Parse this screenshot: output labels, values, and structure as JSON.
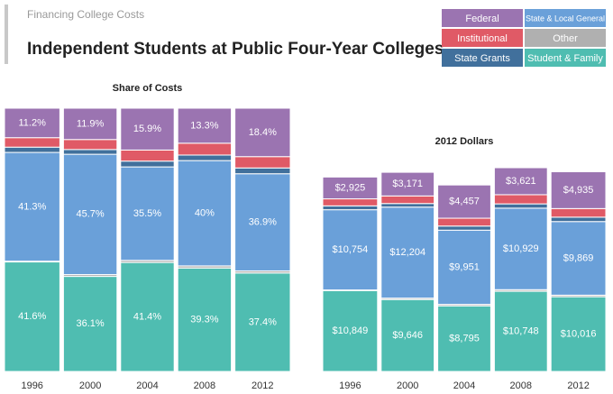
{
  "supertitle": "Financing College Costs",
  "title": "Independent Students at Public Four-Year Colleges",
  "chart_data": [
    {
      "type": "bar",
      "stacked": true,
      "title": "Share of Costs",
      "categories": [
        "1996",
        "2000",
        "2004",
        "2008",
        "2012"
      ],
      "series": [
        {
          "name": "Student & Family",
          "color": "#4fbdb1",
          "values": [
            41.6,
            36.1,
            41.4,
            39.3,
            37.4
          ],
          "value_labels": [
            "41.6%",
            "36.1%",
            "41.4%",
            "39.3%",
            "37.4%"
          ]
        },
        {
          "name": "Other",
          "color": "#b0b0b0",
          "values": [
            0.3,
            0.7,
            0.8,
            0.8,
            0.8
          ]
        },
        {
          "name": "State & Local General",
          "color": "#6aa0d9",
          "values": [
            41.3,
            45.7,
            35.5,
            40,
            36.9
          ],
          "value_labels": [
            "41.3%",
            "45.7%",
            "35.5%",
            "40%",
            "36.9%"
          ]
        },
        {
          "name": "State Grants",
          "color": "#41709c",
          "values": [
            2.0,
            1.8,
            2.2,
            2.1,
            2.2
          ]
        },
        {
          "name": "Institutional",
          "color": "#e05a66",
          "values": [
            3.6,
            3.8,
            4.2,
            4.5,
            4.3
          ]
        },
        {
          "name": "Federal",
          "color": "#9b74b1",
          "values": [
            11.2,
            11.9,
            15.9,
            13.3,
            18.4
          ],
          "value_labels": [
            "11.2%",
            "11.9%",
            "15.9%",
            "13.3%",
            "18.4%"
          ]
        }
      ]
    },
    {
      "type": "bar",
      "stacked": true,
      "title": "2012 Dollars",
      "categories": [
        "1996",
        "2000",
        "2004",
        "2008",
        "2012"
      ],
      "series": [
        {
          "name": "Student & Family",
          "color": "#4fbdb1",
          "values": [
            10849,
            9646,
            8795,
            10748,
            10016
          ],
          "value_labels": [
            "$10,849",
            "$9,646",
            "$8,795",
            "$10,748",
            "$10,016"
          ]
        },
        {
          "name": "Other",
          "color": "#b0b0b0",
          "values": [
            80,
            187,
            200,
            219,
            214
          ]
        },
        {
          "name": "State & Local General",
          "color": "#6aa0d9",
          "values": [
            10754,
            12204,
            9951,
            10929,
            9869
          ],
          "value_labels": [
            "$10,754",
            "$12,204",
            "$9,951",
            "$10,929",
            "$9,869"
          ]
        },
        {
          "name": "State Grants",
          "color": "#41709c",
          "values": [
            520,
            481,
            550,
            574,
            589
          ]
        },
        {
          "name": "Institutional",
          "color": "#e05a66",
          "values": [
            940,
            1015,
            1050,
            1229,
            1151
          ]
        },
        {
          "name": "Federal",
          "color": "#9b74b1",
          "values": [
            2925,
            3171,
            4457,
            3621,
            4935
          ],
          "value_labels": [
            "$2,925",
            "$3,171",
            "$4,457",
            "$3,621",
            "$4,935"
          ]
        }
      ]
    }
  ]
}
